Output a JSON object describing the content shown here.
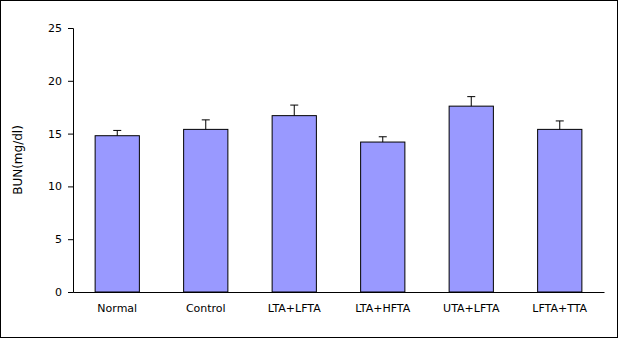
{
  "chart_data": {
    "type": "bar",
    "y_label": "BUN(mg/dl)",
    "categories": [
      "Normal",
      "Control",
      "LTA+LFTA",
      "LTA+HFTA",
      "UTA+LFTA",
      "LFTA+TTA"
    ],
    "values": [
      14.8,
      15.4,
      16.7,
      14.2,
      17.6,
      15.4
    ],
    "errors": [
      0.5,
      0.9,
      1.0,
      0.5,
      0.9,
      0.8
    ],
    "color": "#9999ff",
    "ylim": [
      0,
      25
    ],
    "yticks": [
      0,
      5,
      10,
      15,
      20,
      25
    ],
    "grid": false
  }
}
